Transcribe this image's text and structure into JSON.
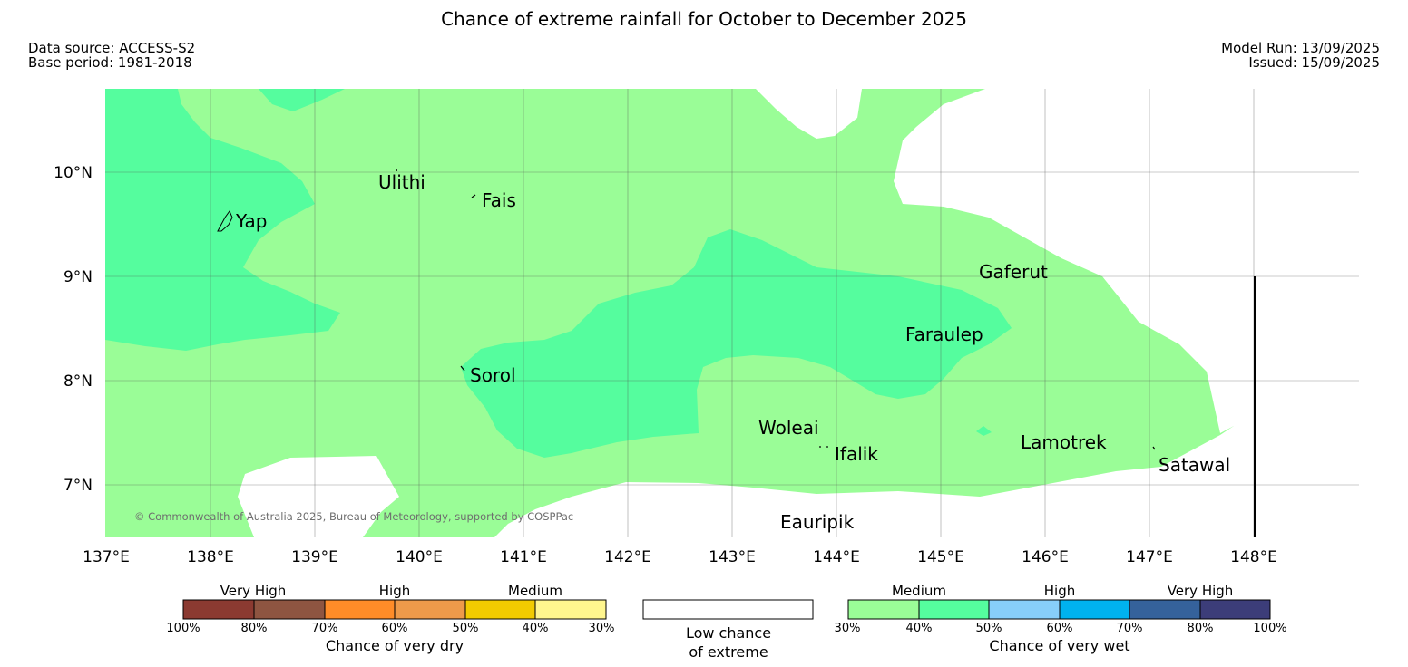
{
  "title": "Chance of extreme rainfall for October to December 2025",
  "meta": {
    "data_source": "Data source: ACCESS-S2",
    "base_period": "Base period: 1981-2018",
    "model_run": "Model Run: 13/09/2025",
    "issued": "Issued: 15/09/2025"
  },
  "map": {
    "copyright": "© Commonwealth of Australia 2025, Bureau of Meteorology, supported by COSPPac",
    "lat_labels": [
      "10°N",
      "9°N",
      "8°N",
      "7°N"
    ],
    "lon_labels": [
      "137°E",
      "138°E",
      "139°E",
      "140°E",
      "141°E",
      "142°E",
      "143°E",
      "144°E",
      "145°E",
      "146°E",
      "147°E",
      "148°E"
    ],
    "places": [
      "Ulithi",
      "Fais",
      "Yap",
      "Gaferut",
      "Faraulep",
      "Sorol",
      "Woleai",
      "Ifalik",
      "Lamotrek",
      "Satawal",
      "Eauripik"
    ],
    "colors": {
      "medium_wet": "#9afd97",
      "high_wet": "#55fd9e",
      "low_chance": "#ffffff"
    }
  },
  "legend": {
    "dry": {
      "categories": [
        "Very High",
        "High",
        "Medium"
      ],
      "ticks": [
        "100%",
        "80%",
        "70%",
        "60%",
        "50%",
        "40%",
        "30%"
      ],
      "colors": [
        "#8b3a31",
        "#8e5541",
        "#ff8c28",
        "#ee9a4a",
        "#f2cb00",
        "#fff68e"
      ],
      "label": "Chance of very dry"
    },
    "neutral": {
      "line1": "Low chance",
      "line2": "of extreme"
    },
    "wet": {
      "categories": [
        "Medium",
        "High",
        "Very High"
      ],
      "ticks": [
        "30%",
        "40%",
        "50%",
        "60%",
        "70%",
        "80%",
        "100%"
      ],
      "colors": [
        "#9afd97",
        "#55fd9e",
        "#87cefa",
        "#00b2ef",
        "#35629b",
        "#3c3d79"
      ],
      "label": "Chance of very wet"
    }
  }
}
